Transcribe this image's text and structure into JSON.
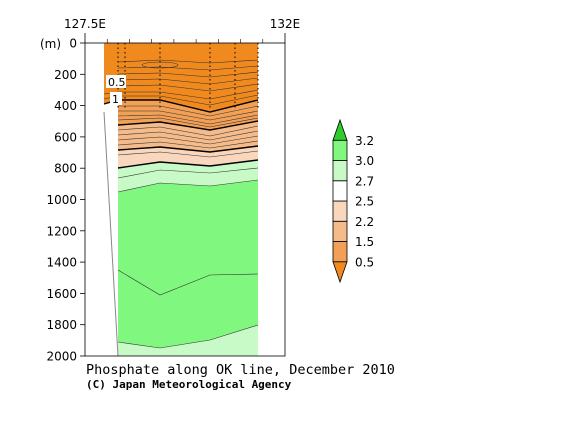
{
  "chart_data": {
    "type": "contour-section",
    "title": "Phosphate along OK line, December 2010",
    "credit": "(C) Japan Meteorological Agency",
    "x_axis": {
      "position": "top",
      "tick_labels": [
        "127.5E",
        "132E"
      ],
      "range": [
        127.5,
        132
      ]
    },
    "y_axis": {
      "unit_label": "(m)",
      "ticks": [
        0,
        200,
        400,
        600,
        800,
        1000,
        1200,
        1400,
        1600,
        1800,
        2000
      ],
      "tick_labels": [
        "0",
        "200",
        "400",
        "600",
        "800",
        "1000",
        "1200",
        "1400",
        "1600",
        "1800",
        "2000"
      ],
      "range": [
        0,
        2000
      ],
      "reversed": true
    },
    "contour_labels": [
      "0.5",
      "1"
    ],
    "colorbar": {
      "levels": [
        0.5,
        1.5,
        2.2,
        2.5,
        2.7,
        3.0,
        3.2
      ],
      "labels": [
        "0.5",
        "1.5",
        "2.2",
        "2.5",
        "2.7",
        "3.0",
        "3.2"
      ],
      "colors": [
        "#f08a1e",
        "#f2a056",
        "#f5bb8a",
        "#f8d7bd",
        "#ffffff",
        "#c8fac8",
        "#80f880",
        "#2ecc2e"
      ]
    }
  }
}
